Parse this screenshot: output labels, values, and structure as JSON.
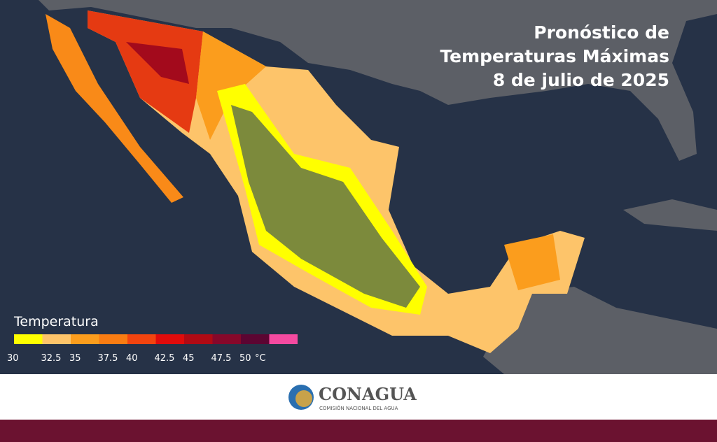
{
  "title": [
    "Pronóstico de",
    "Temperaturas Máximas",
    "8 de julio de 2025"
  ],
  "legend": {
    "title": "Temperatura",
    "ticks": [
      30,
      32.5,
      35,
      37.5,
      40,
      42.5,
      45,
      47.5,
      50
    ],
    "unit": "°C",
    "colors": [
      "#ffff00",
      "#fdc46a",
      "#fb9d1d",
      "#f97c12",
      "#f2440f",
      "#e00b0b",
      "#b00a14",
      "#86082a",
      "#5c0532",
      "#f54aa0"
    ]
  },
  "logo": {
    "name": "CONAGUA",
    "subtitle": "COMISIÓN NACIONAL DEL AGUA"
  }
}
